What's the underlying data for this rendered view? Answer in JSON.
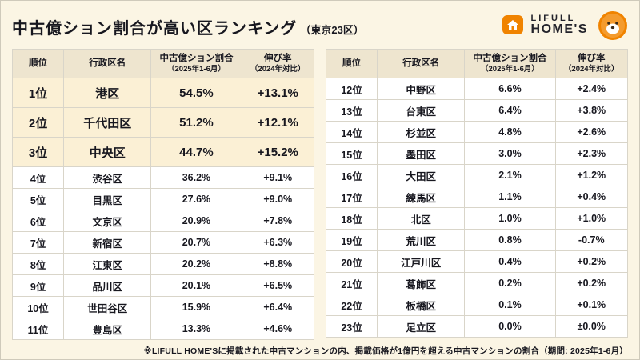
{
  "page": {
    "title": "中古億ション割合が高い区ランキング",
    "title_suffix": "（東京23区）",
    "footnote": "※LIFULL HOME'Sに掲載された中古マンションの内、掲載価格が1億円を超える中古マンションの割合（期間: 2025年1-6月）"
  },
  "brand": {
    "name_line1": "LIFULL",
    "name_line2": "HOME'S",
    "accent_orange": "#f08300",
    "bg_cream": "#fbf5e4",
    "header_beige": "#eee5cf",
    "highlight_cream": "#fbf0d5"
  },
  "table_headers": {
    "rank": "順位",
    "ward": "行政区名",
    "ratio_line1": "中古億ション割合",
    "ratio_line2": "（2025年1-6月）",
    "growth_line1": "伸び率",
    "growth_line2": "（2024年対比）"
  },
  "chart_data": {
    "type": "table",
    "title": "中古億ション割合が高い区ランキング（東京23区）",
    "columns": [
      "順位",
      "行政区名",
      "中古億ション割合（2025年1-6月）",
      "伸び率（2024年対比）"
    ],
    "left_rows": [
      {
        "rank": "1位",
        "ward": "港区",
        "ratio": "54.5%",
        "growth": "+13.1%",
        "highlight": true
      },
      {
        "rank": "2位",
        "ward": "千代田区",
        "ratio": "51.2%",
        "growth": "+12.1%",
        "highlight": true
      },
      {
        "rank": "3位",
        "ward": "中央区",
        "ratio": "44.7%",
        "growth": "+15.2%",
        "highlight": true
      },
      {
        "rank": "4位",
        "ward": "渋谷区",
        "ratio": "36.2%",
        "growth": "+9.1%",
        "highlight": false
      },
      {
        "rank": "5位",
        "ward": "目黒区",
        "ratio": "27.6%",
        "growth": "+9.0%",
        "highlight": false
      },
      {
        "rank": "6位",
        "ward": "文京区",
        "ratio": "20.9%",
        "growth": "+7.8%",
        "highlight": false
      },
      {
        "rank": "7位",
        "ward": "新宿区",
        "ratio": "20.7%",
        "growth": "+6.3%",
        "highlight": false
      },
      {
        "rank": "8位",
        "ward": "江東区",
        "ratio": "20.2%",
        "growth": "+8.8%",
        "highlight": false
      },
      {
        "rank": "9位",
        "ward": "品川区",
        "ratio": "20.1%",
        "growth": "+6.5%",
        "highlight": false
      },
      {
        "rank": "10位",
        "ward": "世田谷区",
        "ratio": "15.9%",
        "growth": "+6.4%",
        "highlight": false
      },
      {
        "rank": "11位",
        "ward": "豊島区",
        "ratio": "13.3%",
        "growth": "+4.6%",
        "highlight": false
      }
    ],
    "right_rows": [
      {
        "rank": "12位",
        "ward": "中野区",
        "ratio": "6.6%",
        "growth": "+2.4%",
        "highlight": false
      },
      {
        "rank": "13位",
        "ward": "台東区",
        "ratio": "6.4%",
        "growth": "+3.8%",
        "highlight": false
      },
      {
        "rank": "14位",
        "ward": "杉並区",
        "ratio": "4.8%",
        "growth": "+2.6%",
        "highlight": false
      },
      {
        "rank": "15位",
        "ward": "墨田区",
        "ratio": "3.0%",
        "growth": "+2.3%",
        "highlight": false
      },
      {
        "rank": "16位",
        "ward": "大田区",
        "ratio": "2.1%",
        "growth": "+1.2%",
        "highlight": false
      },
      {
        "rank": "17位",
        "ward": "練馬区",
        "ratio": "1.1%",
        "growth": "+0.4%",
        "highlight": false
      },
      {
        "rank": "18位",
        "ward": "北区",
        "ratio": "1.0%",
        "growth": "+1.0%",
        "highlight": false
      },
      {
        "rank": "19位",
        "ward": "荒川区",
        "ratio": "0.8%",
        "growth": "-0.7%",
        "highlight": false
      },
      {
        "rank": "20位",
        "ward": "江戸川区",
        "ratio": "0.4%",
        "growth": "+0.2%",
        "highlight": false
      },
      {
        "rank": "21位",
        "ward": "葛飾区",
        "ratio": "0.2%",
        "growth": "+0.2%",
        "highlight": false
      },
      {
        "rank": "22位",
        "ward": "板橋区",
        "ratio": "0.1%",
        "growth": "+0.1%",
        "highlight": false
      },
      {
        "rank": "23位",
        "ward": "足立区",
        "ratio": "0.0%",
        "growth": "±0.0%",
        "highlight": false
      }
    ]
  }
}
